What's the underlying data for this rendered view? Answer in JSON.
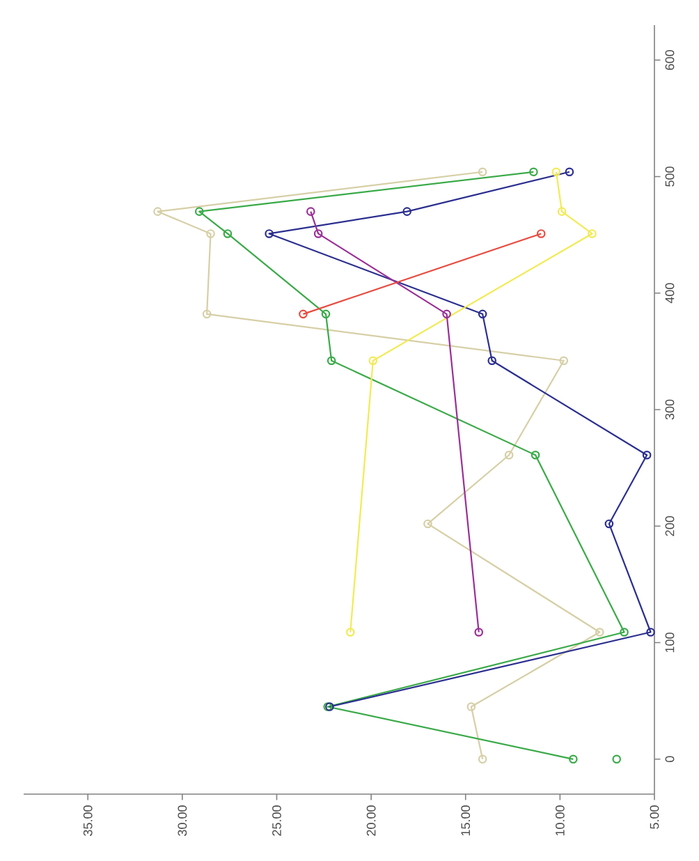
{
  "chart_data": {
    "type": "line",
    "marker": "circle",
    "line_style": "solid",
    "grid": false,
    "xlim": [
      38.4,
      5
    ],
    "ylim": [
      -30,
      630
    ],
    "xticks": [
      {
        "value": 35,
        "label": "35.00"
      },
      {
        "value": 30,
        "label": "30.00"
      },
      {
        "value": 25,
        "label": "25.00"
      },
      {
        "value": 20,
        "label": "20.00"
      },
      {
        "value": 15,
        "label": "15.00"
      },
      {
        "value": 10,
        "label": "10.00"
      },
      {
        "value": 5,
        "label": "5.00"
      }
    ],
    "yticks": [
      0,
      100,
      200,
      300,
      400,
      500,
      600
    ],
    "series": [
      {
        "color": "#d6cfa6",
        "x": [
          14.1,
          14.7,
          7.9,
          17.0,
          12.7,
          9.8,
          28.7,
          28.5,
          31.3,
          14.1
        ],
        "values": [
          0,
          45,
          109,
          202,
          261,
          342,
          382,
          451,
          470,
          504
        ]
      },
      {
        "color": "#3aaa48",
        "x": [
          9.3,
          22.3,
          6.6,
          11.3,
          22.1,
          22.4,
          27.6,
          29.1,
          11.4
        ],
        "values": [
          0,
          45,
          109,
          261,
          342,
          382,
          451,
          470,
          504
        ]
      },
      {
        "color": "#3aaa48",
        "type": "scatter",
        "x": [
          7.0
        ],
        "values": [
          0
        ]
      },
      {
        "color": "#2b2f8f",
        "x": [
          22.2,
          5.2,
          7.4,
          5.4,
          13.6,
          14.1,
          25.4,
          18.1,
          9.5
        ],
        "values": [
          45,
          109,
          202,
          261,
          342,
          382,
          451,
          470,
          504
        ]
      },
      {
        "color": "#f2ea55",
        "x": [
          21.1,
          19.9,
          8.3,
          9.9,
          10.2
        ],
        "values": [
          109,
          342,
          451,
          470,
          504
        ]
      },
      {
        "color": "#9a2f96",
        "x": [
          14.3,
          16.0,
          22.8,
          23.2
        ],
        "values": [
          109,
          382,
          451,
          470
        ]
      },
      {
        "color": "#e84a3f",
        "x": [
          23.6,
          11.0
        ],
        "values": [
          382,
          451
        ]
      }
    ]
  }
}
